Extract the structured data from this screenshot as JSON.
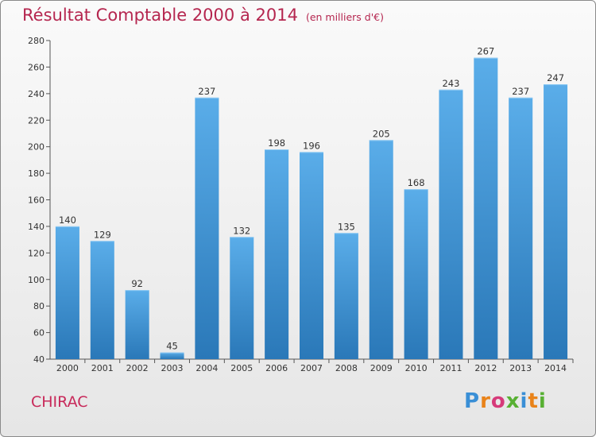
{
  "header": {
    "title": "Résultat Comptable 2000 à 2014",
    "subtitle": "(en milliers d'€)"
  },
  "footer": {
    "commune": "CHIRAC",
    "logo_letters": [
      "P",
      "r",
      "o",
      "x",
      "i",
      "t",
      "i"
    ]
  },
  "colors": {
    "bar_light": "#5aade9",
    "bar_dark": "#2a78b8",
    "title": "#b5264f"
  },
  "chart_data": {
    "type": "bar",
    "title": "Résultat Comptable 2000 à 2014",
    "subtitle": "(en milliers d'€)",
    "xlabel": "",
    "ylabel": "",
    "categories": [
      "2000",
      "2001",
      "2002",
      "2003",
      "2004",
      "2005",
      "2006",
      "2007",
      "2008",
      "2009",
      "2010",
      "2011",
      "2012",
      "2013",
      "2014"
    ],
    "values": [
      140,
      129,
      92,
      45,
      237,
      132,
      198,
      196,
      135,
      205,
      168,
      243,
      267,
      237,
      247
    ],
    "ylim": [
      40,
      280
    ],
    "yticks": [
      40,
      60,
      80,
      100,
      120,
      140,
      160,
      180,
      200,
      220,
      240,
      260,
      280
    ],
    "grid": false
  }
}
